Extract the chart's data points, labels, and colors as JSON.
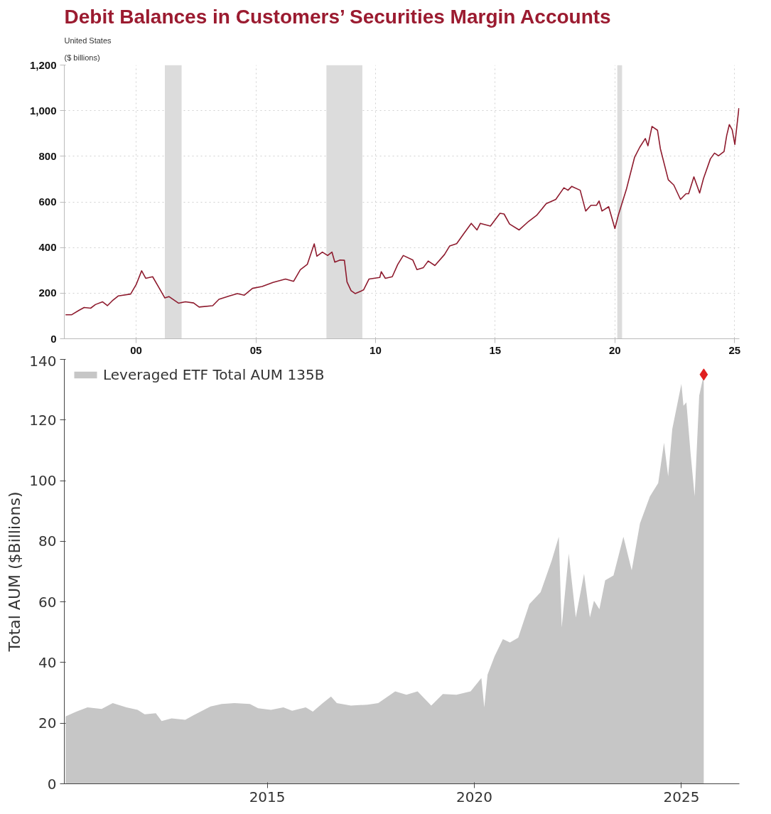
{
  "chart_data": [
    {
      "type": "line",
      "title": "Debit Balances in Customers’ Securities Margin Accounts",
      "subtitle": "United States",
      "ylabel": "($ billions)",
      "xlim": [
        1997,
        2025.2
      ],
      "xticks": [
        {
          "value": 2000,
          "label": "00"
        },
        {
          "value": 2005,
          "label": "05"
        },
        {
          "value": 2010,
          "label": "10"
        },
        {
          "value": 2015,
          "label": "15"
        },
        {
          "value": 2020,
          "label": "20"
        },
        {
          "value": 2025,
          "label": "25"
        }
      ],
      "ylim": [
        0,
        1200
      ],
      "yticks": [
        0,
        200,
        400,
        600,
        800,
        {
          "value": 1000,
          "label": "1,000"
        },
        {
          "value": 1200,
          "label": "1,200"
        }
      ],
      "grid": true,
      "legend": false,
      "bands": [
        {
          "axis": "x",
          "from": 2001.2,
          "to": 2001.9,
          "color": "#dcdcdc"
        },
        {
          "axis": "x",
          "from": 2007.95,
          "to": 2009.45,
          "color": "#dcdcdc"
        },
        {
          "axis": "x",
          "from": 2020.1,
          "to": 2020.3,
          "color": "#dcdcdc"
        }
      ],
      "series": [
        {
          "color": "#8e1b2e",
          "x": [
            1997.05,
            1997.3,
            1997.6,
            1997.83,
            1998.1,
            1998.3,
            1998.6,
            1998.8,
            1999.0,
            1999.26,
            1999.77,
            2000.0,
            2000.23,
            2000.4,
            2000.69,
            2000.92,
            2001.2,
            2001.37,
            2001.77,
            2002.06,
            2002.4,
            2002.63,
            2003.2,
            2003.46,
            2003.9,
            2004.23,
            2004.52,
            2004.86,
            2005.26,
            2005.72,
            2006.24,
            2006.58,
            2006.86,
            2007.15,
            2007.44,
            2007.55,
            2007.78,
            2008.0,
            2008.18,
            2008.3,
            2008.52,
            2008.7,
            2008.81,
            2008.98,
            2009.15,
            2009.5,
            2009.73,
            2010.18,
            2010.24,
            2010.41,
            2010.7,
            2010.93,
            2011.16,
            2011.56,
            2011.73,
            2012.0,
            2012.2,
            2012.48,
            2012.88,
            2013.1,
            2013.39,
            2013.67,
            2014.0,
            2014.24,
            2014.38,
            2014.8,
            2015.2,
            2015.37,
            2015.6,
            2016.0,
            2016.4,
            2016.73,
            2017.13,
            2017.53,
            2017.87,
            2018.04,
            2018.2,
            2018.55,
            2018.78,
            2019.0,
            2019.23,
            2019.34,
            2019.46,
            2019.74,
            2020.0,
            2020.14,
            2020.48,
            2020.82,
            2021.04,
            2021.27,
            2021.38,
            2021.55,
            2021.78,
            2021.9,
            2022.23,
            2022.46,
            2022.74,
            2022.97,
            2023.08,
            2023.3,
            2023.54,
            2023.7,
            2023.99,
            2024.16,
            2024.33,
            2024.56,
            2024.67,
            2024.78,
            2024.9,
            2025.01,
            2025.18
          ],
          "values": [
            105,
            105,
            124,
            137,
            134,
            150,
            162,
            145,
            166,
            188,
            196,
            237,
            298,
            265,
            272,
            230,
            179,
            185,
            156,
            162,
            157,
            139,
            145,
            173,
            188,
            198,
            191,
            221,
            229,
            247,
            262,
            252,
            303,
            326,
            416,
            362,
            380,
            365,
            380,
            336,
            345,
            344,
            249,
            211,
            198,
            214,
            262,
            269,
            294,
            265,
            272,
            326,
            365,
            345,
            303,
            312,
            341,
            321,
            369,
            407,
            417,
            458,
            506,
            477,
            506,
            494,
            550,
            547,
            503,
            477,
            515,
            541,
            592,
            611,
            662,
            651,
            668,
            651,
            560,
            585,
            585,
            604,
            560,
            579,
            483,
            541,
            655,
            795,
            840,
            878,
            846,
            931,
            914,
            833,
            697,
            674,
            611,
            636,
            636,
            710,
            639,
            702,
            789,
            814,
            802,
            821,
            891,
            939,
            916,
            852,
            1011
          ]
        }
      ]
    },
    {
      "type": "area",
      "ylabel": "Total AUM ($Billions)",
      "xlim": [
        2010.1,
        2026.4
      ],
      "xticks": [
        2015,
        2020,
        2025
      ],
      "ylim": [
        0,
        140
      ],
      "yticks": [
        0,
        20,
        40,
        60,
        80,
        100,
        120,
        140
      ],
      "grid": false,
      "legend": "top left",
      "series": [
        {
          "name": "Leveraged ETF Total AUM 135B",
          "color": "#c6c6c6",
          "x": [
            2010.13,
            2010.39,
            2010.66,
            2011.0,
            2011.27,
            2011.6,
            2011.87,
            2012.04,
            2012.31,
            2012.45,
            2012.69,
            2013.02,
            2013.23,
            2013.63,
            2013.9,
            2014.21,
            2014.58,
            2014.78,
            2015.09,
            2015.39,
            2015.6,
            2015.93,
            2016.1,
            2016.34,
            2016.54,
            2016.68,
            2017.02,
            2017.42,
            2017.68,
            2018.09,
            2018.36,
            2018.63,
            2018.96,
            2019.24,
            2019.57,
            2019.91,
            2020.17,
            2020.24,
            2020.32,
            2020.49,
            2020.69,
            2020.86,
            2021.06,
            2021.33,
            2021.6,
            2021.87,
            2022.04,
            2022.11,
            2022.28,
            2022.45,
            2022.65,
            2022.79,
            2022.89,
            2023.02,
            2023.16,
            2023.36,
            2023.6,
            2023.8,
            2024.0,
            2024.24,
            2024.44,
            2024.58,
            2024.68,
            2024.78,
            2025.0,
            2025.05,
            2025.12,
            2025.22,
            2025.32,
            2025.43,
            2025.54
          ],
          "values": [
            22.2,
            23.8,
            25.2,
            24.7,
            26.6,
            25.2,
            24.4,
            22.9,
            23.3,
            20.7,
            21.6,
            21.1,
            22.7,
            25.5,
            26.3,
            26.6,
            26.3,
            24.9,
            24.4,
            25.2,
            24.1,
            25.2,
            23.8,
            26.6,
            28.8,
            26.6,
            25.8,
            26.1,
            26.6,
            30.5,
            29.4,
            30.5,
            25.8,
            29.6,
            29.4,
            30.5,
            34.9,
            25.2,
            36.0,
            42.1,
            47.7,
            46.6,
            48.2,
            59.3,
            63.2,
            73.7,
            81.5,
            51.6,
            75.9,
            54.9,
            69.3,
            54.9,
            60.4,
            57.6,
            67.1,
            68.7,
            81.5,
            70.4,
            85.9,
            94.8,
            99.2,
            112.5,
            101.4,
            117,
            131.9,
            124.7,
            125.8,
            109.2,
            94.8,
            128,
            135
          ]
        },
        {
          "type": "scatter",
          "marker": "diamond",
          "color": "#e02020",
          "x": [
            2025.54
          ],
          "values": [
            135
          ]
        }
      ]
    }
  ]
}
